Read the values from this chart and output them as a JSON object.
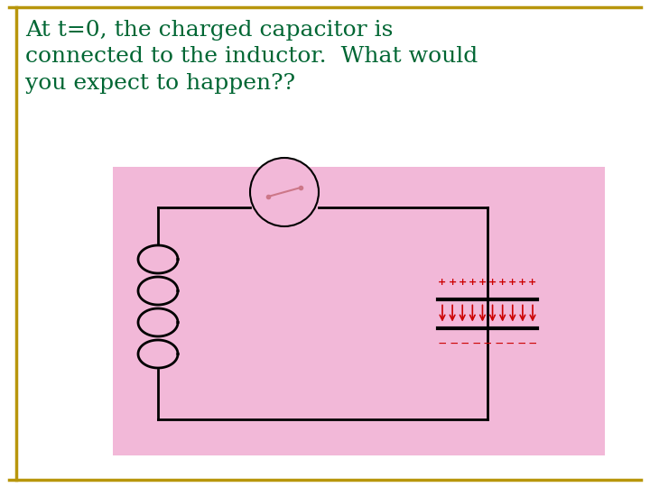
{
  "title_text": "At t=0, the charged capacitor is\nconnected to the inductor.  What would\nyou expect to happen??",
  "title_color": "#006633",
  "title_fontsize": 18,
  "bg_color": "#ffffff",
  "pink_bg": "#f2b8d8",
  "border_color": "#b8960c",
  "circuit_color": "#000000",
  "switch_fill": "#f2b8d8",
  "switch_line": "#cc7788",
  "plus_color": "#cc0000",
  "minus_color": "#cc0000",
  "arrow_color": "#cc0000",
  "plate_color": "#000000"
}
